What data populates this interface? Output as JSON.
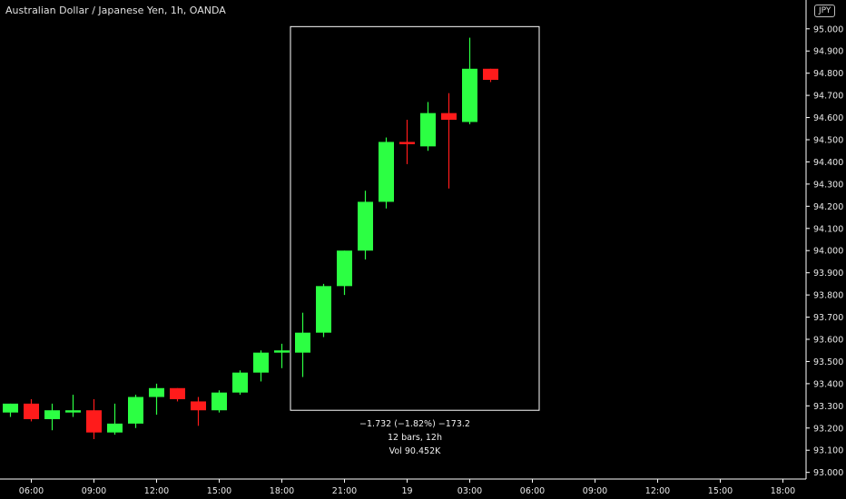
{
  "header": {
    "title": "Australian Dollar / Japanese Yen, 1h, OANDA",
    "currency": "JPY"
  },
  "measurement": {
    "change_line": "−1.732 (−1.82%) −173.2",
    "bars_line": "12 bars, 12h",
    "volume_line": "Vol 90.452K"
  },
  "colors": {
    "up": "#2cff43",
    "down": "#ff1b1b",
    "background": "#000000",
    "axis_line": "#ffffff",
    "text": "#e8e8e8"
  },
  "chart_data": {
    "type": "candlestick",
    "ylim": [
      92.97,
      95.13
    ],
    "y_ticks": [
      "93.000",
      "93.100",
      "93.200",
      "93.300",
      "93.400",
      "93.500",
      "93.600",
      "93.700",
      "93.800",
      "93.900",
      "94.000",
      "94.100",
      "94.200",
      "94.300",
      "94.400",
      "94.500",
      "94.600",
      "94.700",
      "94.800",
      "94.900",
      "95.000"
    ],
    "x_ticks": [
      {
        "label": "06:00",
        "index": 1
      },
      {
        "label": "09:00",
        "index": 4
      },
      {
        "label": "12:00",
        "index": 7
      },
      {
        "label": "15:00",
        "index": 10
      },
      {
        "label": "18:00",
        "index": 13
      },
      {
        "label": "21:00",
        "index": 16
      },
      {
        "label": "19",
        "index": 19
      },
      {
        "label": "03:00",
        "index": 22
      },
      {
        "label": "06:00",
        "index": 25
      },
      {
        "label": "09:00",
        "index": 28
      },
      {
        "label": "12:00",
        "index": 31
      },
      {
        "label": "15:00",
        "index": 34
      },
      {
        "label": "18:00",
        "index": 37
      }
    ],
    "candles": [
      {
        "open": 93.27,
        "high": 93.31,
        "low": 93.25,
        "close": 93.31
      },
      {
        "open": 93.31,
        "high": 93.33,
        "low": 93.23,
        "close": 93.24
      },
      {
        "open": 93.24,
        "high": 93.31,
        "low": 93.19,
        "close": 93.28
      },
      {
        "open": 93.27,
        "high": 93.35,
        "low": 93.25,
        "close": 93.28
      },
      {
        "open": 93.28,
        "high": 93.33,
        "low": 93.15,
        "close": 93.18
      },
      {
        "open": 93.18,
        "high": 93.31,
        "low": 93.17,
        "close": 93.22
      },
      {
        "open": 93.22,
        "high": 93.35,
        "low": 93.2,
        "close": 93.34
      },
      {
        "open": 93.34,
        "high": 93.4,
        "low": 93.26,
        "close": 93.38
      },
      {
        "open": 93.38,
        "high": 93.38,
        "low": 93.32,
        "close": 93.33
      },
      {
        "open": 93.32,
        "high": 93.34,
        "low": 93.21,
        "close": 93.28
      },
      {
        "open": 93.28,
        "high": 93.37,
        "low": 93.27,
        "close": 93.36
      },
      {
        "open": 93.36,
        "high": 93.46,
        "low": 93.35,
        "close": 93.45
      },
      {
        "open": 93.45,
        "high": 93.55,
        "low": 93.41,
        "close": 93.54
      },
      {
        "open": 93.54,
        "high": 93.58,
        "low": 93.47,
        "close": 93.55
      },
      {
        "open": 93.54,
        "high": 93.72,
        "low": 93.43,
        "close": 93.63
      },
      {
        "open": 93.63,
        "high": 93.85,
        "low": 93.61,
        "close": 93.84
      },
      {
        "open": 93.84,
        "high": 94.0,
        "low": 93.8,
        "close": 94.0
      },
      {
        "open": 94.0,
        "high": 94.27,
        "low": 93.96,
        "close": 94.22
      },
      {
        "open": 94.22,
        "high": 94.51,
        "low": 94.19,
        "close": 94.49
      },
      {
        "open": 94.49,
        "high": 94.59,
        "low": 94.39,
        "close": 94.48
      },
      {
        "open": 94.47,
        "high": 94.67,
        "low": 94.45,
        "close": 94.62
      },
      {
        "open": 94.62,
        "high": 94.71,
        "low": 94.28,
        "close": 94.59
      },
      {
        "open": 94.58,
        "high": 94.96,
        "low": 94.57,
        "close": 94.82
      },
      {
        "open": 94.82,
        "high": 94.82,
        "low": 94.76,
        "close": 94.77
      }
    ]
  }
}
